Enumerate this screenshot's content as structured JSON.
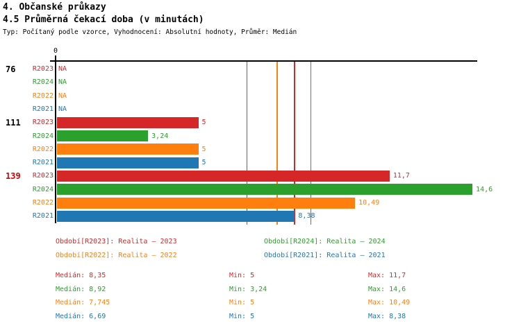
{
  "header": {
    "title": "4. Občanské průkazy",
    "subtitle": "4.5 Průměrná čekací doba (v minutách)",
    "meta": "Typ: Počítaný podle vzorce, Vyhodnocení: Absolutní hodnoty, Průměr: Medián"
  },
  "chart_data": {
    "type": "bar",
    "orientation": "horizontal",
    "x_axis": {
      "zero_label": "0",
      "xlim": [
        0,
        14.95
      ],
      "grid": false
    },
    "series_order": [
      "R2023",
      "R2024",
      "R2022",
      "R2021"
    ],
    "series_colors": {
      "R2023": "#d62728",
      "R2024": "#2ca02c",
      "R2022": "#ff7f0e",
      "R2021": "#1f77b4"
    },
    "groups": [
      {
        "label": "76",
        "label_color": "#000000",
        "bars": [
          {
            "series": "R2023",
            "value": null,
            "display": "NA"
          },
          {
            "series": "R2024",
            "value": null,
            "display": "NA"
          },
          {
            "series": "R2022",
            "value": null,
            "display": "NA"
          },
          {
            "series": "R2021",
            "value": null,
            "display": "NA"
          }
        ]
      },
      {
        "label": "111",
        "label_color": "#000000",
        "bars": [
          {
            "series": "R2023",
            "value": 5,
            "display": "5"
          },
          {
            "series": "R2024",
            "value": 3.24,
            "display": "3,24"
          },
          {
            "series": "R2022",
            "value": 5,
            "display": "5"
          },
          {
            "series": "R2021",
            "value": 5,
            "display": "5"
          }
        ]
      },
      {
        "label": "139",
        "label_color": "#dd0000",
        "bars": [
          {
            "series": "R2023",
            "value": 11.7,
            "display": "11,7"
          },
          {
            "series": "R2024",
            "value": 14.6,
            "display": "14,6"
          },
          {
            "series": "R2022",
            "value": 10.49,
            "display": "10,49"
          },
          {
            "series": "R2021",
            "value": 8.38,
            "display": "8,38"
          }
        ]
      }
    ],
    "median_lines": [
      {
        "series": "R2021",
        "value": 6.69
      },
      {
        "series": "R2022",
        "value": 7.745
      },
      {
        "series": "R2023",
        "value": 8.35
      },
      {
        "series": "R2024",
        "value": 8.92
      }
    ]
  },
  "legend": [
    {
      "series": "R2023",
      "text": "Období[R2023]: Realita – 2023"
    },
    {
      "series": "R2024",
      "text": "Období[R2024]: Realita – 2024"
    },
    {
      "series": "R2022",
      "text": "Období[R2022]: Realita – 2022"
    },
    {
      "series": "R2021",
      "text": "Období[R2021]: Realita – 2021"
    }
  ],
  "stats": [
    {
      "series": "R2023",
      "median": "Medián: 8,35",
      "min": "Min: 5",
      "max": "Max: 11,7"
    },
    {
      "series": "R2024",
      "median": "Medián: 8,92",
      "min": "Min: 3,24",
      "max": "Max: 14,6"
    },
    {
      "series": "R2022",
      "median": "Medián: 7,745",
      "min": "Min: 5",
      "max": "Max: 10,49"
    },
    {
      "series": "R2021",
      "median": "Medián: 6,69",
      "min": "Min: 5",
      "max": "Max: 8,38"
    }
  ]
}
